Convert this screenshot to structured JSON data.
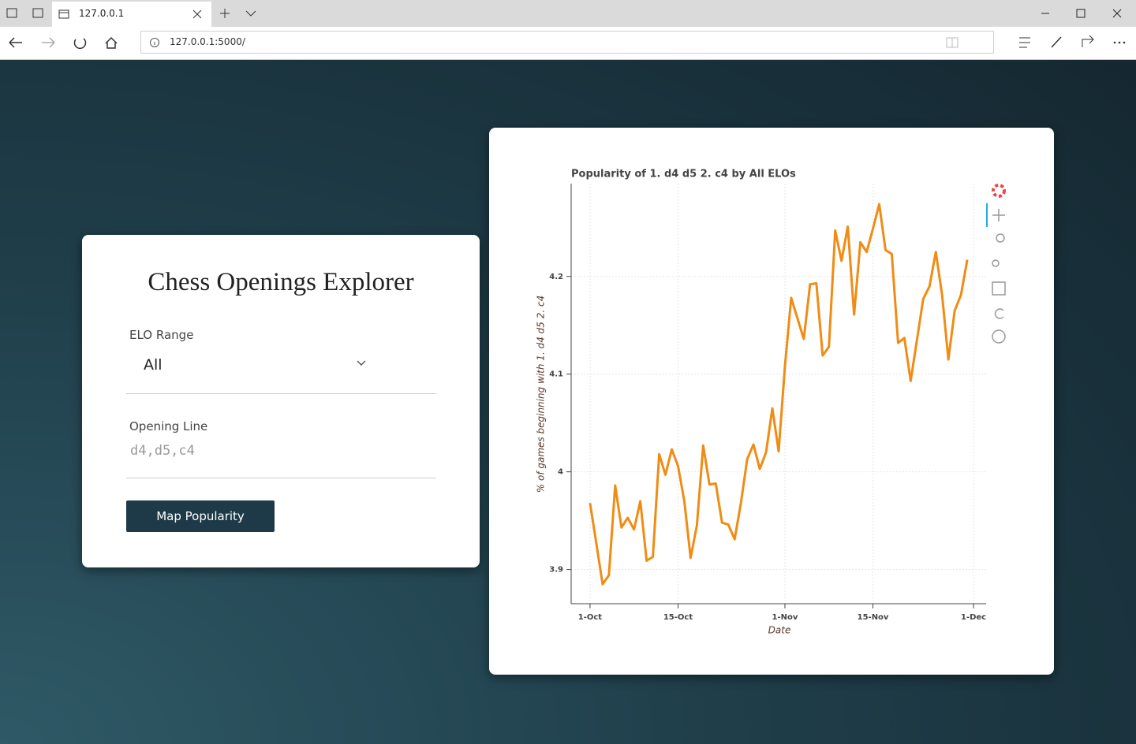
{
  "browser": {
    "tab_title": "127.0.0.1",
    "address": "127.0.0.1:5000/"
  },
  "form": {
    "title": "Chess Openings Explorer",
    "elo_label": "ELO Range",
    "elo_value": "All",
    "opening_label": "Opening Line",
    "opening_placeholder": "d4,d5,c4",
    "button": "Map Popularity"
  },
  "chart_data": {
    "type": "line",
    "title": "Popularity of 1. d4 d5 2. c4 by All ELOs",
    "x_label": "Date",
    "y_label": "% of games beginning with 1. d4 d5 2. c4",
    "x": [
      0,
      1,
      2,
      3,
      4,
      5,
      6,
      7,
      8,
      9,
      10,
      11,
      12,
      13,
      14,
      15,
      16,
      17,
      18,
      19,
      20,
      21,
      22,
      23,
      24,
      25,
      26,
      27,
      28,
      29,
      30,
      31,
      32,
      33,
      34,
      35,
      36,
      37,
      38,
      39,
      40,
      41,
      42,
      43,
      44,
      45,
      46,
      47,
      48,
      49,
      50,
      51,
      52,
      53,
      54,
      55,
      56,
      57,
      58,
      59,
      60
    ],
    "values": [
      3.968,
      3.927,
      3.885,
      3.894,
      3.986,
      3.943,
      3.953,
      3.941,
      3.97,
      3.909,
      3.913,
      4.018,
      3.997,
      4.023,
      4.006,
      3.97,
      3.912,
      3.945,
      4.027,
      3.987,
      3.988,
      3.948,
      3.946,
      3.931,
      3.968,
      4.013,
      4.028,
      4.003,
      4.02,
      4.065,
      4.021,
      4.108,
      4.178,
      4.157,
      4.136,
      4.192,
      4.193,
      4.119,
      4.128,
      4.247,
      4.216,
      4.251,
      4.161,
      4.235,
      4.225,
      4.249,
      4.274,
      4.227,
      4.223,
      4.132,
      4.137,
      4.093,
      4.135,
      4.177,
      4.19,
      4.225,
      4.181,
      4.115,
      4.165,
      4.181,
      4.217
    ],
    "color": "#f08c14",
    "xlim": [
      -3,
      63
    ],
    "xticks": [
      {
        "value": 0,
        "label": "1-Oct"
      },
      {
        "value": 14,
        "label": "15-Oct"
      },
      {
        "value": 31,
        "label": "1-Nov"
      },
      {
        "value": 45,
        "label": "15-Nov"
      },
      {
        "value": 61,
        "label": "1-Dec"
      }
    ],
    "ylim": [
      3.865,
      4.295
    ],
    "yticks": [
      3.9,
      4,
      4.1,
      4.2
    ],
    "grid": true
  }
}
